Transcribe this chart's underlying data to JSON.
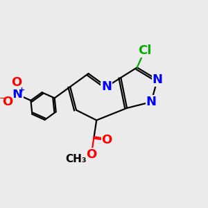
{
  "bg_color": "#ebebeb",
  "bond_color": "#000000",
  "bond_width": 1.6,
  "atom_colors": {
    "N": "#0000ff",
    "O": "#ff0000",
    "Cl": "#00aa00",
    "C": "#000000"
  },
  "font_size_atom": 13,
  "font_size_small": 11,
  "font_size_charge": 8
}
